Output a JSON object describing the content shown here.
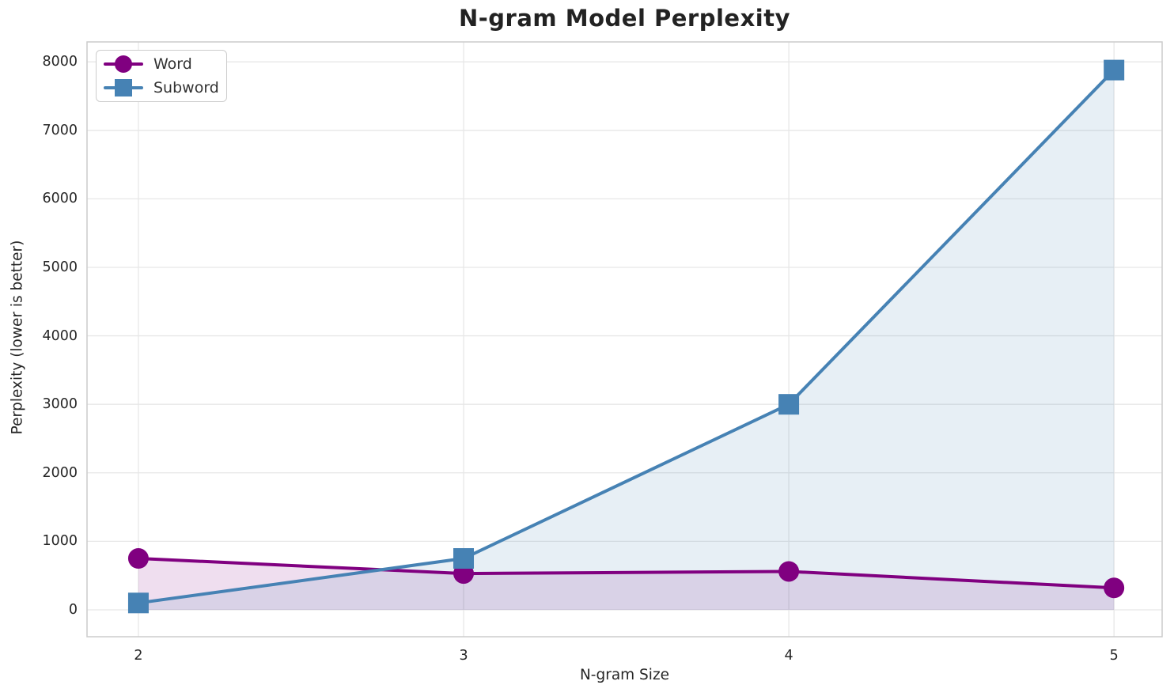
{
  "chart_data": {
    "type": "line",
    "title": "N-gram Model Perplexity",
    "xlabel": "N-gram Size",
    "ylabel": "Perplexity (lower is better)",
    "x": [
      2,
      3,
      4,
      5
    ],
    "series": [
      {
        "name": "Word",
        "values": [
          750,
          530,
          560,
          320
        ],
        "color": "#800080",
        "marker": "circle",
        "fill_to_zero": true,
        "fill_alpha": 0.13
      },
      {
        "name": "Subword",
        "values": [
          100,
          750,
          3000,
          7880
        ],
        "color": "#4682b4",
        "marker": "square",
        "fill_to_zero": true,
        "fill_alpha": 0.13
      }
    ],
    "xticks": [
      2,
      3,
      4,
      5
    ],
    "yticks": [
      0,
      1000,
      2000,
      3000,
      4000,
      5000,
      6000,
      7000,
      8000
    ],
    "xlim": [
      1.842,
      5.148
    ],
    "ylim": [
      -393,
      8291
    ],
    "grid": true,
    "legend_position": "upper left"
  },
  "style": {
    "grid_color": "#e7e7e7",
    "spine_color": "#cccccc",
    "text_color": "#262626",
    "line_width": 4,
    "marker_circle_radius": 13,
    "marker_square_size": 26
  }
}
